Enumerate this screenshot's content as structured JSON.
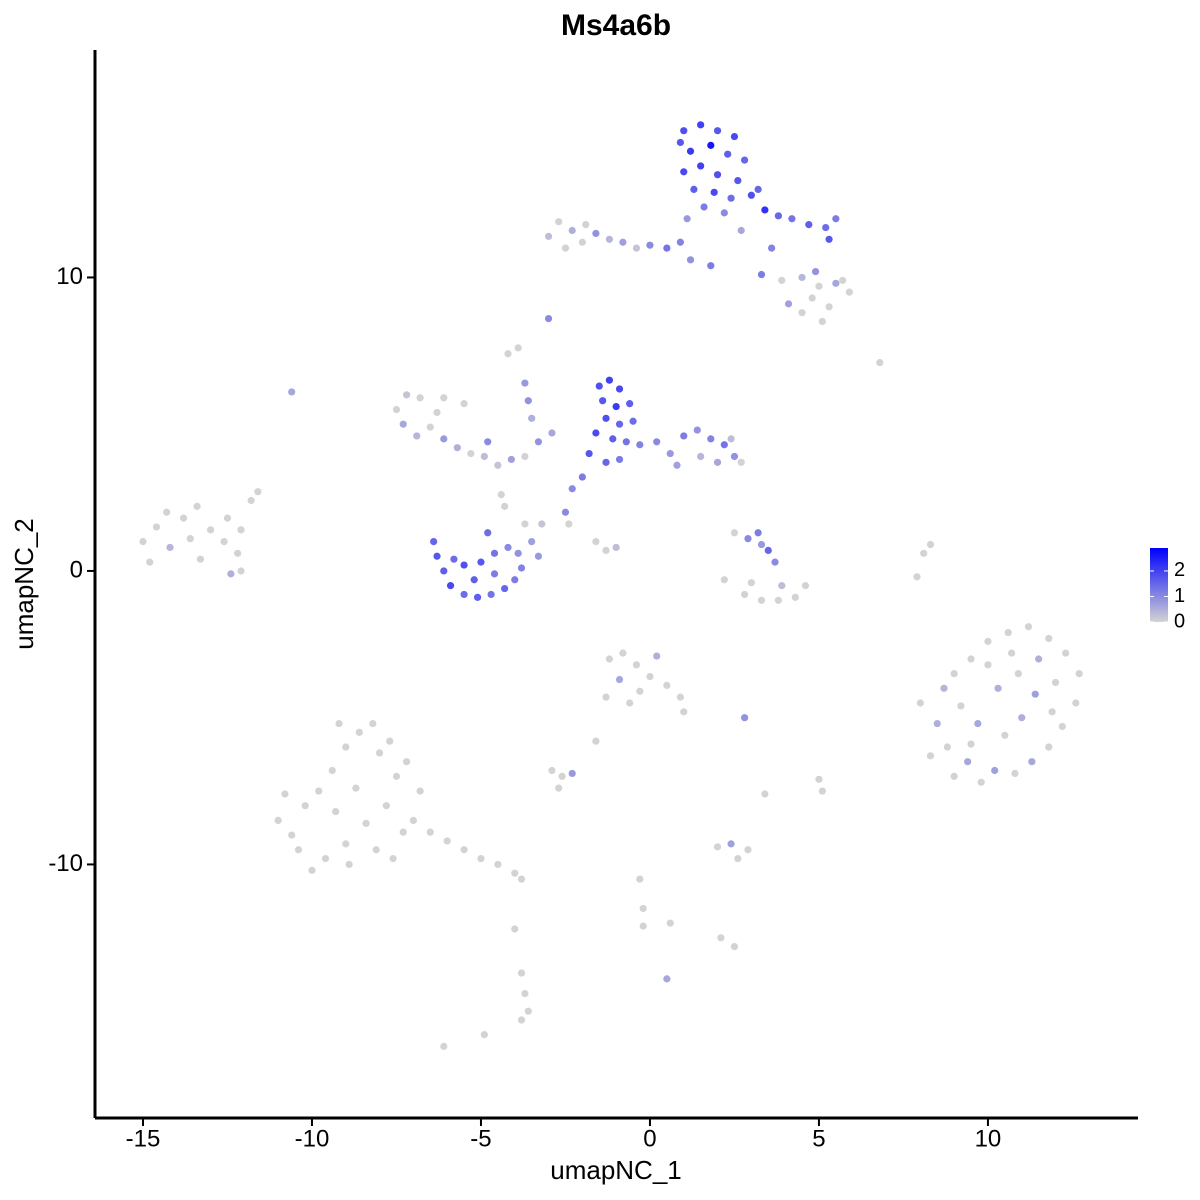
{
  "chart_data": {
    "type": "scatter",
    "title": "Ms4a6b",
    "x_label": "umapNC_1",
    "y_label": "umapNC_2",
    "xlim": [
      -16.42,
      14.44
    ],
    "ylim": [
      -18.64,
      17.75
    ],
    "xticks": [
      -15,
      -10,
      -5,
      0,
      5,
      10
    ],
    "yticks": [
      -10,
      0,
      10
    ],
    "colorbar": {
      "lim": [
        0,
        2.9
      ],
      "ticks": [
        0,
        1,
        2
      ],
      "low_color": "#d3d3d3",
      "high_color": "#0000ff"
    },
    "x": [
      1.0,
      1.5,
      2.0,
      2.5,
      1.2,
      1.8,
      2.3,
      2.8,
      1.0,
      1.5,
      2.0,
      2.6,
      1.3,
      1.9,
      2.4,
      3.0,
      3.4,
      3.8,
      4.2,
      4.7,
      5.2,
      5.5,
      5.3,
      3.2,
      0.9,
      1.6,
      2.2,
      1.1,
      2.7,
      3.6,
      -3.0,
      -2.7,
      -2.3,
      -2.0,
      -1.6,
      -1.2,
      -0.8,
      -0.4,
      0.0,
      0.5,
      0.9,
      -2.5,
      1.2,
      1.8,
      -1.9,
      4.5,
      5.0,
      5.5,
      5.9,
      4.8,
      5.3,
      4.1,
      4.5,
      5.7,
      4.9,
      3.9,
      5.1,
      6.8,
      3.3,
      -1.5,
      -1.2,
      -0.9,
      -1.4,
      -1.0,
      -0.6,
      -1.3,
      -0.9,
      -0.5,
      -1.6,
      -1.1,
      -0.7,
      -1.8,
      -1.3,
      -0.9,
      -0.3,
      0.2,
      0.6,
      1.0,
      1.4,
      1.8,
      2.2,
      2.5,
      2.0,
      1.5,
      0.8,
      2.4,
      2.7,
      -2.0,
      -2.3,
      -7.5,
      -7.2,
      -6.8,
      -7.3,
      -6.9,
      -6.5,
      -6.1,
      -5.7,
      -5.3,
      -4.9,
      -4.5,
      -4.1,
      -3.7,
      -3.3,
      -2.9,
      -6.3,
      -5.5,
      -4.8,
      -4.2,
      -3.9,
      -3.7,
      -3.6,
      -3.5,
      -3.0,
      -10.6,
      -6.1,
      -6.4,
      -6.3,
      -6.1,
      -5.9,
      -5.5,
      -5.1,
      -4.7,
      -4.3,
      -4.0,
      -3.8,
      -3.9,
      -4.2,
      -4.6,
      -5.0,
      -5.5,
      -5.8,
      -5.2,
      -4.6,
      -3.5,
      -3.7,
      -4.3,
      -4.4,
      -4.8,
      -3.2,
      -3.3,
      -2.5,
      -2.4,
      -1.6,
      -1.0,
      -1.3,
      2.5,
      2.9,
      3.2,
      3.5,
      3.7,
      3.3,
      2.2,
      2.8,
      3.3,
      3.8,
      4.3,
      4.6,
      3.9,
      3.0,
      -15.0,
      -14.6,
      -14.2,
      -13.8,
      -13.4,
      -13.0,
      -12.6,
      -12.2,
      -12.5,
      -13.3,
      -14.8,
      -14.3,
      -13.6,
      -12.1,
      -11.8,
      -12.4,
      -12.1,
      -11.6,
      8.0,
      8.5,
      8.8,
      9.0,
      9.4,
      9.8,
      10.2,
      10.8,
      11.3,
      11.8,
      12.2,
      12.6,
      12.7,
      12.3,
      11.8,
      11.2,
      10.6,
      10.0,
      9.5,
      9.0,
      8.7,
      9.2,
      9.7,
      10.3,
      10.9,
      11.4,
      11.9,
      10.5,
      10.0,
      11.0,
      9.5,
      12.0,
      8.3,
      10.7,
      11.5,
      -11.0,
      -10.6,
      -10.2,
      -9.8,
      -9.4,
      -9.0,
      -8.6,
      -8.2,
      -8.0,
      -7.7,
      -7.5,
      -7.8,
      -8.4,
      -9.0,
      -9.6,
      -10.4,
      -8.7,
      -9.3,
      -8.1,
      -7.3,
      -7.0,
      -6.5,
      -6.0,
      -5.5,
      -5.0,
      -4.5,
      -4.0,
      -3.8,
      -10.8,
      -9.2,
      -8.9,
      -7.6,
      -10.0,
      -6.8,
      -7.2,
      -1.2,
      -0.8,
      -0.4,
      0.0,
      0.5,
      0.9,
      1.0,
      -0.3,
      -0.9,
      0.2,
      -1.3,
      -0.6,
      -2.9,
      -2.6,
      -2.3,
      -2.7,
      -1.6,
      2.8,
      3.4,
      5.0,
      5.1,
      2.0,
      2.4,
      2.9,
      2.6,
      -0.3,
      -0.2,
      -0.2,
      0.6,
      2.1,
      2.5,
      -3.8,
      -3.7,
      -3.6,
      -3.8,
      -6.1,
      -4.9,
      0.5,
      7.9,
      8.1,
      8.3,
      -4.0
    ],
    "values": [
      15.0,
      15.2,
      15.0,
      14.8,
      14.3,
      14.5,
      14.2,
      14.0,
      13.6,
      13.8,
      13.5,
      13.3,
      13.0,
      12.9,
      12.7,
      12.8,
      12.3,
      12.1,
      12.0,
      11.8,
      11.7,
      12.0,
      11.3,
      13.0,
      14.6,
      12.4,
      12.2,
      12.0,
      11.6,
      11.0,
      11.4,
      11.9,
      11.6,
      11.2,
      11.5,
      11.3,
      11.2,
      11.0,
      11.1,
      11.0,
      11.2,
      11.0,
      10.6,
      10.4,
      11.8,
      10.0,
      9.7,
      9.8,
      9.5,
      9.3,
      9.0,
      9.1,
      8.8,
      9.9,
      10.2,
      9.9,
      8.5,
      7.1,
      10.1,
      6.3,
      6.5,
      6.2,
      5.8,
      5.6,
      5.7,
      5.2,
      5.0,
      5.1,
      4.7,
      4.5,
      4.4,
      4.0,
      3.7,
      3.8,
      4.3,
      4.4,
      4.0,
      4.6,
      4.8,
      4.5,
      4.3,
      3.9,
      3.7,
      3.9,
      3.6,
      4.5,
      3.7,
      3.2,
      2.8,
      5.5,
      6.0,
      5.9,
      5.0,
      4.6,
      4.9,
      4.5,
      4.2,
      4.0,
      3.9,
      3.6,
      3.8,
      3.9,
      4.4,
      4.7,
      5.4,
      5.7,
      4.4,
      7.4,
      7.6,
      6.4,
      5.8,
      5.2,
      8.6,
      6.1,
      5.9,
      1.0,
      0.5,
      0.0,
      -0.5,
      -0.8,
      -0.9,
      -0.8,
      -0.6,
      -0.3,
      0.1,
      0.6,
      0.8,
      0.6,
      0.3,
      0.2,
      0.4,
      -0.3,
      -0.1,
      1.0,
      1.6,
      2.2,
      2.6,
      1.3,
      1.6,
      0.5,
      2.0,
      1.6,
      1.0,
      0.8,
      0.7,
      1.3,
      1.1,
      1.3,
      0.7,
      0.3,
      0.9,
      -0.3,
      -0.8,
      -1.0,
      -1.0,
      -0.9,
      -0.5,
      -0.5,
      -0.4,
      1.0,
      1.5,
      0.8,
      1.8,
      2.2,
      1.4,
      1.0,
      0.6,
      1.8,
      0.4,
      0.3,
      2.0,
      1.1,
      1.4,
      2.4,
      -0.1,
      0.0,
      2.7,
      -4.5,
      -5.2,
      -6.0,
      -7.0,
      -6.5,
      -7.2,
      -6.8,
      -6.9,
      -6.5,
      -6.0,
      -5.3,
      -4.5,
      -3.5,
      -2.8,
      -2.3,
      -1.9,
      -2.1,
      -2.4,
      -3.0,
      -3.5,
      -4.0,
      -4.6,
      -5.2,
      -4.0,
      -3.5,
      -4.2,
      -4.8,
      -5.6,
      -3.2,
      -5.0,
      -5.9,
      -3.8,
      -6.3,
      -2.8,
      -3.0,
      -8.5,
      -9.0,
      -8.0,
      -7.5,
      -6.8,
      -6.0,
      -5.5,
      -5.2,
      -6.2,
      -5.8,
      -7.0,
      -8.0,
      -8.6,
      -9.3,
      -9.8,
      -9.5,
      -7.4,
      -8.2,
      -9.5,
      -8.9,
      -8.5,
      -8.9,
      -9.2,
      -9.5,
      -9.8,
      -10.0,
      -10.3,
      -10.5,
      -7.6,
      -5.2,
      -10.0,
      -9.8,
      -10.2,
      -7.5,
      -6.5,
      -3.0,
      -2.8,
      -3.2,
      -3.6,
      -3.9,
      -4.3,
      -4.8,
      -4.1,
      -3.7,
      -2.9,
      -4.3,
      -4.5,
      -6.8,
      -7.0,
      -6.9,
      -7.4,
      -5.8,
      -5.0,
      -7.6,
      -7.1,
      -7.5,
      -9.4,
      -9.3,
      -9.5,
      -9.8,
      -10.5,
      -11.5,
      -12.1,
      -12.0,
      -12.5,
      -12.8,
      -13.7,
      -14.4,
      -15.0,
      -15.3,
      -16.2,
      -15.8,
      -13.9,
      -0.2,
      0.6,
      0.9,
      -12.2
    ],
    "expression": [
      1.8,
      2.0,
      1.7,
      1.9,
      2.1,
      2.6,
      1.6,
      1.5,
      1.9,
      2.0,
      1.8,
      1.7,
      1.6,
      1.9,
      1.4,
      1.8,
      2.2,
      1.5,
      1.3,
      1.6,
      1.4,
      1.2,
      1.7,
      1.5,
      1.7,
      1.2,
      1.0,
      0.8,
      0.6,
      1.1,
      0.3,
      0,
      0.5,
      0,
      0.9,
      0.4,
      0.7,
      0.2,
      1.0,
      1.3,
      1.1,
      0,
      0.9,
      1.2,
      0,
      0.4,
      0,
      0.6,
      0,
      0,
      0,
      0.7,
      0,
      0,
      0.9,
      0,
      0,
      0,
      1.2,
      1.8,
      2.0,
      1.9,
      1.7,
      2.1,
      1.6,
      1.8,
      1.5,
      1.4,
      1.9,
      1.6,
      1.3,
      1.7,
      1.5,
      1.2,
      1.1,
      1.0,
      0.8,
      1.2,
      0.9,
      1.1,
      1.3,
      0.9,
      0.6,
      0.4,
      0.7,
      0.3,
      0,
      1.2,
      1.0,
      0,
      0.2,
      0,
      0.6,
      0.4,
      0,
      0.8,
      0.5,
      0,
      0.3,
      0.2,
      0.7,
      0,
      0.9,
      0.6,
      0,
      0,
      1.0,
      0,
      0,
      0.8,
      0.9,
      0.5,
      1.0,
      0.6,
      0,
      1.5,
      1.7,
      1.6,
      1.9,
      1.4,
      1.6,
      1.3,
      1.5,
      1.2,
      1.1,
      0.9,
      1.0,
      1.3,
      1.7,
      1.8,
      1.4,
      1.6,
      1.2,
      0.7,
      0,
      0,
      0,
      1.4,
      0.2,
      0.8,
      1.0,
      0,
      0,
      0.3,
      0,
      0,
      1.0,
      1.2,
      1.5,
      1.0,
      0.8,
      0,
      0,
      0,
      0,
      0,
      0,
      0.3,
      0,
      0,
      0,
      0.4,
      0,
      0,
      0,
      0,
      0,
      0,
      0,
      0,
      0,
      0,
      0,
      0,
      0.5,
      0,
      0,
      0,
      0.5,
      0,
      0,
      0.6,
      0,
      0.7,
      0,
      0.6,
      0,
      0,
      0,
      0,
      0,
      0,
      0,
      0,
      0,
      0,
      0,
      0.4,
      0,
      0.6,
      0.5,
      0,
      0.7,
      0,
      0,
      0,
      0.5,
      0,
      0,
      0,
      0,
      0.5,
      0,
      0,
      0,
      0,
      0,
      0,
      0,
      0,
      0,
      0,
      0,
      0,
      0,
      0,
      0,
      0,
      0,
      0,
      0,
      0,
      0,
      0,
      0,
      0,
      0,
      0,
      0,
      0,
      0,
      0,
      0,
      0,
      0,
      0,
      0,
      0,
      0,
      0,
      0,
      0,
      0,
      0,
      0,
      0.6,
      0.5,
      0,
      0,
      0,
      0,
      0.8,
      0,
      0,
      0.9,
      0,
      0,
      0,
      0,
      0.7,
      0,
      0,
      0,
      0,
      0,
      0,
      0,
      0,
      0,
      0,
      0,
      0,
      0,
      0,
      0.6,
      0,
      0,
      0,
      0
    ]
  }
}
